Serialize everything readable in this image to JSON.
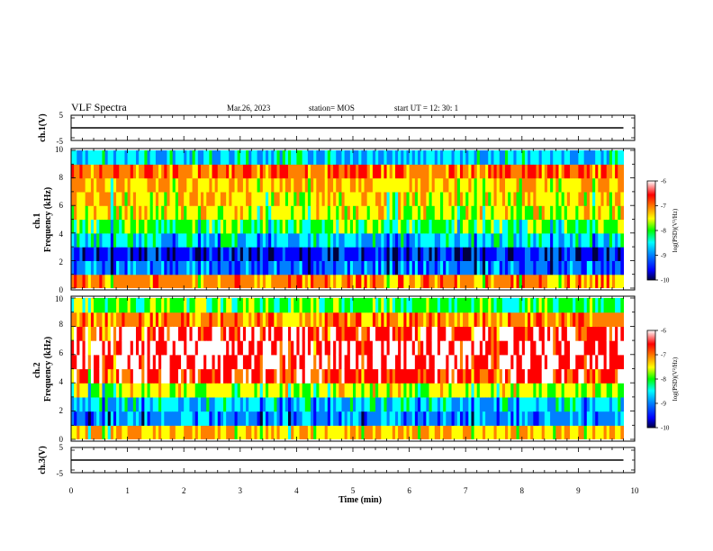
{
  "header": {
    "title": "VLF Spectra",
    "date": "Mar.26, 2023",
    "station": "station= MOS",
    "start": "start  UT =   12: 30: 1"
  },
  "colorbar": {
    "label": "log(PSD)(V²/Hz)",
    "ticks": [
      "-6",
      "-7",
      "-8",
      "-9",
      "-10"
    ],
    "colors": [
      "#ffffff",
      "#ff0000",
      "#ff8000",
      "#ffff00",
      "#00ff00",
      "#00ffff",
      "#0080ff",
      "#0000ff",
      "#000040"
    ]
  },
  "chart_data": [
    {
      "type": "line",
      "panel": "ch1-voltage",
      "ylabel": "ch.1(V)",
      "ylim": [
        -5,
        5
      ],
      "ytick_labels": [
        "5",
        "-5"
      ],
      "x": [
        0,
        1,
        2,
        3,
        4,
        5,
        6,
        7,
        8,
        9,
        9.8
      ],
      "series": [
        {
          "values": [
            0,
            0,
            0,
            0,
            0,
            0,
            0,
            0,
            0,
            0,
            0
          ]
        }
      ]
    },
    {
      "type": "heatmap",
      "panel": "ch1-spectrogram",
      "ylabel": "ch.1\nFrequency (kHz)",
      "ylim": [
        0,
        10
      ],
      "ytick_labels": [
        "0",
        "2",
        "4",
        "6",
        "8",
        "10"
      ],
      "xlim": [
        0,
        10
      ],
      "data_xmax": 9.8,
      "clim": [
        -10,
        -6
      ],
      "freq_bins": [
        0.5,
        1.5,
        2.5,
        3.5,
        4.5,
        5.5,
        6.5,
        7.5,
        8.5,
        9.5
      ],
      "level_profile": [
        -7.0,
        -9.0,
        -9.4,
        -8.6,
        -8.0,
        -7.5,
        -7.4,
        -7.2,
        -6.9,
        -8.6
      ]
    },
    {
      "type": "heatmap",
      "panel": "ch2-spectrogram",
      "ylabel": "ch.2\nFrequency (kHz)",
      "ylim": [
        0,
        10
      ],
      "ytick_labels": [
        "0",
        "2",
        "4",
        "6",
        "8",
        "10"
      ],
      "xlim": [
        0,
        10
      ],
      "data_xmax": 9.8,
      "clim": [
        -10,
        -6
      ],
      "freq_bins": [
        0.5,
        1.5,
        2.5,
        3.5,
        4.5,
        5.5,
        6.5,
        7.5,
        8.5,
        9.5
      ],
      "level_profile": [
        -7.2,
        -8.9,
        -8.6,
        -7.6,
        -6.5,
        -6.2,
        -6.2,
        -6.4,
        -7.0,
        -8.0
      ]
    },
    {
      "type": "line",
      "panel": "ch3-voltage",
      "ylabel": "ch.3(V)",
      "xlabel": "Time  (min)",
      "ylim": [
        -5,
        5
      ],
      "ytick_labels": [
        "5",
        "-5"
      ],
      "xlim": [
        0,
        10
      ],
      "xtick_labels": [
        "0",
        "1",
        "2",
        "3",
        "4",
        "5",
        "6",
        "7",
        "8",
        "9",
        "10"
      ],
      "x": [
        0,
        1,
        2,
        3,
        4,
        5,
        6,
        7,
        8,
        9,
        9.8
      ],
      "series": [
        {
          "values": [
            0,
            0,
            0,
            0,
            0,
            0,
            0,
            0,
            0,
            0,
            0
          ]
        }
      ]
    }
  ]
}
